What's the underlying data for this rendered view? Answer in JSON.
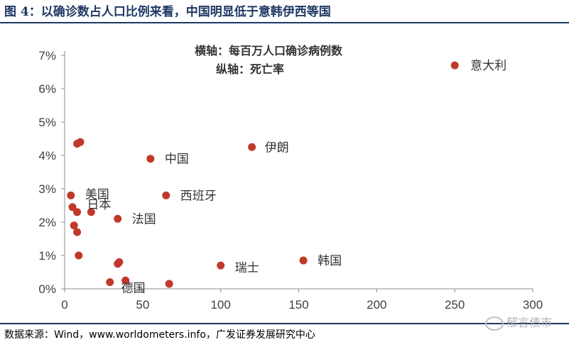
{
  "header": {
    "title": "图 4：以确诊数占人口比例来看，中国明显低于意韩伊西等国"
  },
  "footer": {
    "source": "数据来源：Wind，www.worldometers.info，广发证券发展研究中心",
    "watermark": "郁言债市"
  },
  "chart_data": {
    "type": "scatter",
    "annotation_lines": [
      "横轴：每百万人口确诊病例数",
      "纵轴：死亡率"
    ],
    "xlim": [
      0,
      300
    ],
    "ylim": [
      0,
      7
    ],
    "x_ticks": [
      "0",
      "50",
      "100",
      "150",
      "200",
      "250",
      "300"
    ],
    "y_ticks": [
      "0%",
      "1%",
      "2%",
      "3%",
      "4%",
      "5%",
      "6%",
      "7%"
    ],
    "grid": false,
    "marker_color": "#c0392b",
    "points": [
      {
        "x": 250,
        "y": 6.7,
        "label": "意大利"
      },
      {
        "x": 120,
        "y": 4.25,
        "label": "伊朗"
      },
      {
        "x": 55,
        "y": 3.9,
        "label": "中国"
      },
      {
        "x": 65,
        "y": 2.8,
        "label": "西班牙"
      },
      {
        "x": 4,
        "y": 2.8,
        "label": "美国"
      },
      {
        "x": 17,
        "y": 2.3,
        "label": "日本"
      },
      {
        "x": 34,
        "y": 2.1,
        "label": "法国"
      },
      {
        "x": 100,
        "y": 0.7,
        "label": "瑞士"
      },
      {
        "x": 153,
        "y": 0.85,
        "label": "韩国"
      },
      {
        "x": 39,
        "y": 0.25,
        "label": "德国"
      },
      {
        "x": 8,
        "y": 4.35,
        "label": ""
      },
      {
        "x": 10,
        "y": 4.4,
        "label": ""
      },
      {
        "x": 5,
        "y": 2.45,
        "label": ""
      },
      {
        "x": 8,
        "y": 2.3,
        "label": ""
      },
      {
        "x": 6,
        "y": 1.9,
        "label": ""
      },
      {
        "x": 8,
        "y": 1.7,
        "label": ""
      },
      {
        "x": 9,
        "y": 1.0,
        "label": ""
      },
      {
        "x": 34,
        "y": 0.75,
        "label": ""
      },
      {
        "x": 35,
        "y": 0.8,
        "label": ""
      },
      {
        "x": 29,
        "y": 0.2,
        "label": ""
      },
      {
        "x": 67,
        "y": 0.15,
        "label": ""
      }
    ]
  }
}
